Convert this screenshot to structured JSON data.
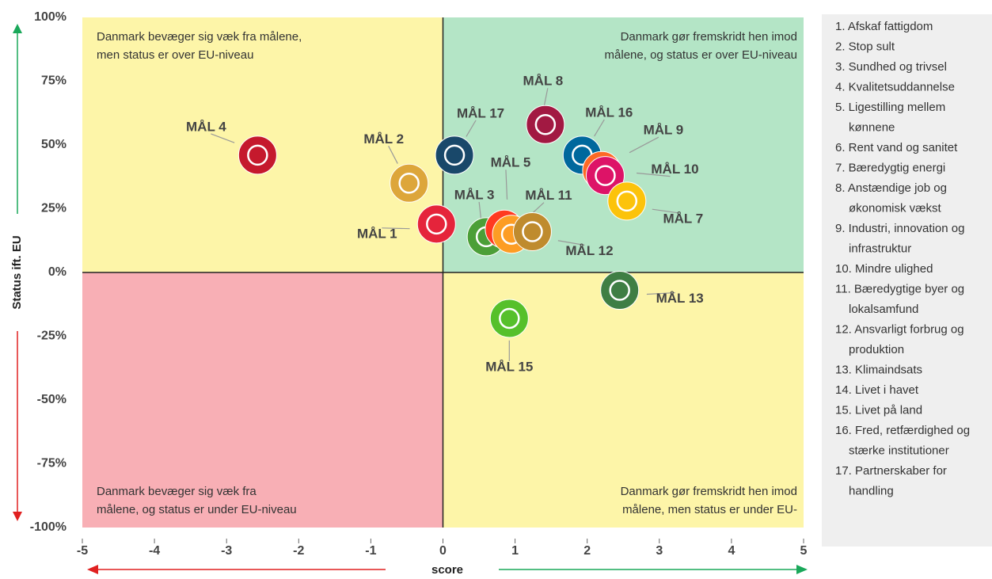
{
  "chart_data": {
    "type": "scatter",
    "xlabel": "score",
    "ylabel": "Status ift. EU",
    "xlim": [
      -5,
      5
    ],
    "ylim": [
      -100,
      100
    ],
    "xticks": [
      -5,
      -4,
      -3,
      -2,
      -1,
      0,
      1,
      2,
      3,
      4,
      5
    ],
    "yticks": [
      {
        "value": 100,
        "label": "100%"
      },
      {
        "value": 75,
        "label": "75%"
      },
      {
        "value": 50,
        "label": "50%"
      },
      {
        "value": 25,
        "label": "25%"
      },
      {
        "value": 0,
        "label": "0%"
      },
      {
        "value": -25,
        "label": "-25%"
      },
      {
        "value": -50,
        "label": "-50%"
      },
      {
        "value": -75,
        "label": "-75%"
      },
      {
        "value": -100,
        "label": "-100%"
      }
    ],
    "labels": [
      "MÅL 4",
      "MÅL 2",
      "MÅL 17",
      "MÅL 1",
      "MÅL 8",
      "MÅL 16",
      "MÅL 9",
      "MÅL 10",
      "MÅL 7",
      "MÅL 3",
      "MÅL 5",
      "MÅL 11",
      "MÅL 12",
      "MÅL 13",
      "MÅL 15"
    ],
    "x": [
      -2.57,
      -0.47,
      0.16,
      -0.09,
      1.42,
      1.93,
      2.2,
      2.25,
      2.55,
      0.6,
      0.85,
      0.95,
      1.24,
      2.45,
      0.92
    ],
    "values": [
      46,
      35,
      46,
      19,
      58,
      46,
      40,
      38,
      28,
      14,
      17,
      15,
      16,
      -7,
      -18
    ],
    "colors": [
      "#c5192d",
      "#dda63a",
      "#19486a",
      "#e5243b",
      "#a21942",
      "#00689d",
      "#fd6925",
      "#dd1367",
      "#fcc30b",
      "#4c9f38",
      "#ff3a21",
      "#fd9d24",
      "#bf8b2e",
      "#3f7e44",
      "#56c02b"
    ],
    "quadrants": [
      {
        "text": [
          "Danmark bevæger sig væk fra målene,",
          "men status er over EU-niveau"
        ],
        "color": "#fdf5a8"
      },
      {
        "text": [
          "Danmark gør fremskridt hen imod",
          "målene, og status er over EU-niveau"
        ],
        "color": "#b4e5c6"
      },
      {
        "text": [
          "Danmark bevæger sig væk fra",
          "målene, og status er under EU-niveau"
        ],
        "color": "#f8afb5"
      },
      {
        "text": [
          "Danmark gør fremskridt hen imod",
          "målene, men status er under EU-"
        ],
        "color": "#fdf5a8"
      }
    ],
    "legend_items": [
      [
        "1. Afskaf fattigdom"
      ],
      [
        "2. Stop sult"
      ],
      [
        "3. Sundhed og trivsel"
      ],
      [
        "4. Kvalitetsuddannelse"
      ],
      [
        "5. Ligestilling mellem",
        "kønnene"
      ],
      [
        "6. Rent vand og sanitet"
      ],
      [
        "7. Bæredygtig energi"
      ],
      [
        "8. Anstændige job og",
        "økonomisk vækst"
      ],
      [
        "9. Industri, innovation og",
        "infrastruktur"
      ],
      [
        "10. Mindre ulighed"
      ],
      [
        "11. Bæredygtige byer og",
        "lokalsamfund"
      ],
      [
        "12. Ansvarligt forbrug og",
        "produktion"
      ],
      [
        "13. Klimaindsats"
      ],
      [
        "14. Livet i havet"
      ],
      [
        "15. Livet på land"
      ],
      [
        "16. Fred, retfærdighed og",
        "stærke institutioner"
      ],
      [
        "17. Partnerskaber for",
        "handling"
      ]
    ]
  }
}
